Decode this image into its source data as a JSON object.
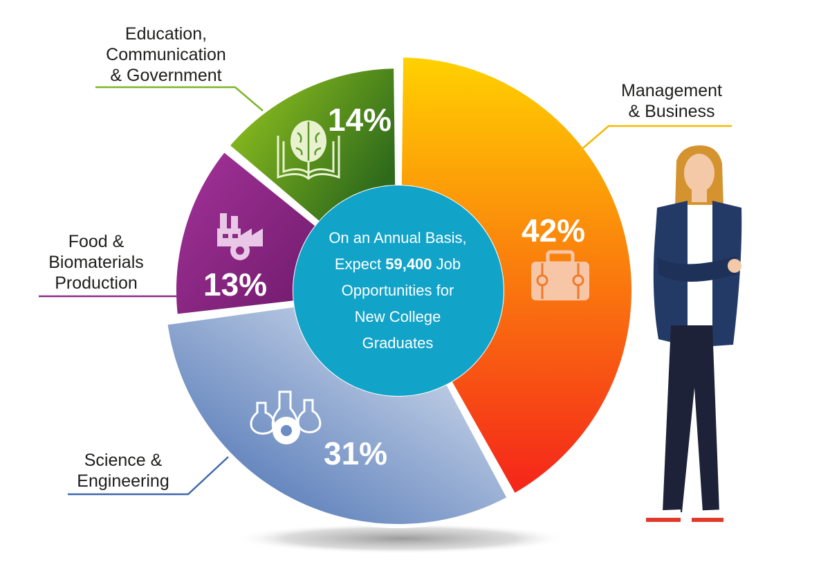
{
  "chart_data": {
    "type": "pie",
    "style": "donut",
    "slices": [
      {
        "label": "Management & Business",
        "value": 42,
        "value_label": "42%",
        "color_start": "#ffd200",
        "color_end": "#f5231b",
        "icon": "briefcase-icon"
      },
      {
        "label": "Science & Engineering",
        "value": 31,
        "value_label": "31%",
        "color_start": "#e6edf6",
        "color_end": "#3e67ad",
        "icon": "lab-flasks-gear-icon"
      },
      {
        "label": "Food & Biomaterials Production",
        "value": 13,
        "value_label": "13%",
        "color_start": "#a4339a",
        "color_end": "#6f1a6b",
        "icon": "factory-gear-icon"
      },
      {
        "label": "Education, Communication & Government",
        "value": 14,
        "value_label": "14%",
        "color_start": "#9bcb1f",
        "color_end": "#2e6a1b",
        "icon": "brain-book-icon"
      }
    ],
    "labels": {
      "management": [
        "Management",
        "& Business"
      ],
      "science": [
        "Science &",
        "Engineering"
      ],
      "food": [
        "Food &",
        "Biomaterials",
        "Production"
      ],
      "education": [
        "Education,",
        "Communication",
        "& Government"
      ]
    },
    "center": {
      "line1": "On an Annual Basis,",
      "line2_prefix": "Expect ",
      "line2_bold": "59,400",
      "line2_suffix": " Job",
      "line3": "Opportunities for",
      "line4": "New College",
      "line5": "Graduates",
      "color": "#12a3c9"
    },
    "leader_colors": {
      "management": "#f5b800",
      "science": "#3e67ad",
      "food": "#8e2a86",
      "education": "#7cb42a"
    },
    "illustration": "woman-standing-arms-crossed"
  }
}
